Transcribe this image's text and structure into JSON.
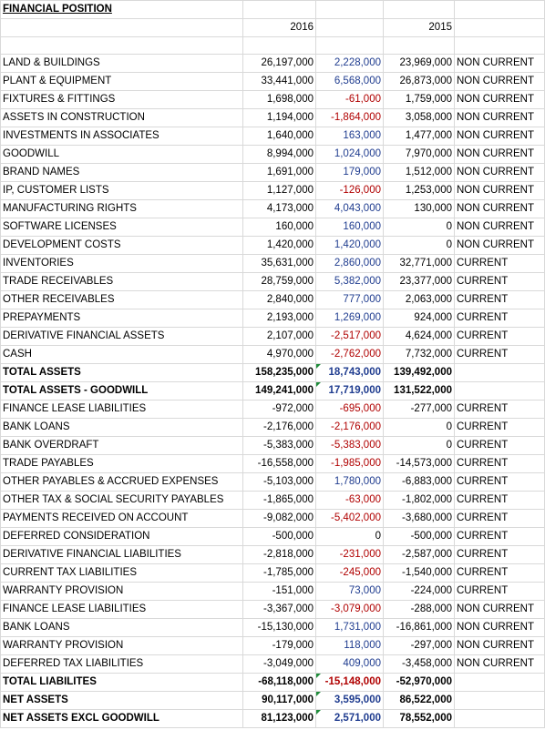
{
  "sheet": {
    "title": "FINANCIAL POSITION",
    "header_2016": "2016",
    "header_2015": "2015",
    "colors": {
      "positive_variance": "#1f3c8f",
      "negative_variance": "#b00000",
      "error_flag": "#1e8c3a"
    },
    "rows": [
      {
        "label": "LAND & BUILDINGS",
        "y2016": "26,197,000",
        "var": "2,228,000",
        "y2015": "23,969,000",
        "cls": "NON CURRENT",
        "sign": "pos"
      },
      {
        "label": "PLANT & EQUIPMENT",
        "y2016": "33,441,000",
        "var": "6,568,000",
        "y2015": "26,873,000",
        "cls": "NON CURRENT",
        "sign": "pos"
      },
      {
        "label": "FIXTURES & FITTINGS",
        "y2016": "1,698,000",
        "var": "-61,000",
        "y2015": "1,759,000",
        "cls": "NON CURRENT",
        "sign": "neg"
      },
      {
        "label": "ASSETS IN CONSTRUCTION",
        "y2016": "1,194,000",
        "var": "-1,864,000",
        "y2015": "3,058,000",
        "cls": "NON CURRENT",
        "sign": "neg"
      },
      {
        "label": "INVESTMENTS IN ASSOCIATES",
        "y2016": "1,640,000",
        "var": "163,000",
        "y2015": "1,477,000",
        "cls": "NON CURRENT",
        "sign": "pos"
      },
      {
        "label": "GOODWILL",
        "y2016": "8,994,000",
        "var": "1,024,000",
        "y2015": "7,970,000",
        "cls": "NON CURRENT",
        "sign": "pos"
      },
      {
        "label": "BRAND NAMES",
        "y2016": "1,691,000",
        "var": "179,000",
        "y2015": "1,512,000",
        "cls": "NON CURRENT",
        "sign": "pos"
      },
      {
        "label": "IP, CUSTOMER LISTS",
        "y2016": "1,127,000",
        "var": "-126,000",
        "y2015": "1,253,000",
        "cls": "NON CURRENT",
        "sign": "neg"
      },
      {
        "label": "MANUFACTURING RIGHTS",
        "y2016": "4,173,000",
        "var": "4,043,000",
        "y2015": "130,000",
        "cls": "NON CURRENT",
        "sign": "pos"
      },
      {
        "label": "SOFTWARE LICENSES",
        "y2016": "160,000",
        "var": "160,000",
        "y2015": "0",
        "cls": "NON CURRENT",
        "sign": "pos"
      },
      {
        "label": "DEVELOPMENT COSTS",
        "y2016": "1,420,000",
        "var": "1,420,000",
        "y2015": "0",
        "cls": "NON CURRENT",
        "sign": "pos"
      },
      {
        "label": "INVENTORIES",
        "y2016": "35,631,000",
        "var": "2,860,000",
        "y2015": "32,771,000",
        "cls": "CURRENT",
        "sign": "pos"
      },
      {
        "label": "TRADE RECEIVABLES",
        "y2016": "28,759,000",
        "var": "5,382,000",
        "y2015": "23,377,000",
        "cls": "CURRENT",
        "sign": "pos"
      },
      {
        "label": "OTHER RECEIVABLES",
        "y2016": "2,840,000",
        "var": "777,000",
        "y2015": "2,063,000",
        "cls": "CURRENT",
        "sign": "pos"
      },
      {
        "label": "PREPAYMENTS",
        "y2016": "2,193,000",
        "var": "1,269,000",
        "y2015": "924,000",
        "cls": "CURRENT",
        "sign": "pos"
      },
      {
        "label": "DERIVATIVE FINANCIAL ASSETS",
        "y2016": "2,107,000",
        "var": "-2,517,000",
        "y2015": "4,624,000",
        "cls": "CURRENT",
        "sign": "neg"
      },
      {
        "label": "CASH",
        "y2016": "4,970,000",
        "var": "-2,762,000",
        "y2015": "7,732,000",
        "cls": "CURRENT",
        "sign": "neg"
      },
      {
        "label": "TOTAL ASSETS",
        "y2016": "158,235,000",
        "var": "18,743,000",
        "y2015": "139,492,000",
        "cls": "",
        "sign": "pos",
        "bold": true,
        "flag": true
      },
      {
        "label": "TOTAL ASSETS - GOODWILL",
        "y2016": "149,241,000",
        "var": "17,719,000",
        "y2015": "131,522,000",
        "cls": "",
        "sign": "pos",
        "bold": true,
        "flag": true
      },
      {
        "label": "FINANCE LEASE LIABILITIES",
        "y2016": "-972,000",
        "var": "-695,000",
        "y2015": "-277,000",
        "cls": "CURRENT",
        "sign": "neg"
      },
      {
        "label": "BANK LOANS",
        "y2016": "-2,176,000",
        "var": "-2,176,000",
        "y2015": "0",
        "cls": "CURRENT",
        "sign": "neg"
      },
      {
        "label": "BANK OVERDRAFT",
        "y2016": "-5,383,000",
        "var": "-5,383,000",
        "y2015": "0",
        "cls": "CURRENT",
        "sign": "neg"
      },
      {
        "label": "TRADE PAYABLES",
        "y2016": "-16,558,000",
        "var": "-1,985,000",
        "y2015": "-14,573,000",
        "cls": "CURRENT",
        "sign": "neg"
      },
      {
        "label": "OTHER PAYABLES & ACCRUED EXPENSES",
        "y2016": "-5,103,000",
        "var": "1,780,000",
        "y2015": "-6,883,000",
        "cls": "CURRENT",
        "sign": "pos"
      },
      {
        "label": "OTHER TAX & SOCIAL SECURITY PAYABLES",
        "y2016": "-1,865,000",
        "var": "-63,000",
        "y2015": "-1,802,000",
        "cls": "CURRENT",
        "sign": "neg"
      },
      {
        "label": "PAYMENTS RECEIVED ON ACCOUNT",
        "y2016": "-9,082,000",
        "var": "-5,402,000",
        "y2015": "-3,680,000",
        "cls": "CURRENT",
        "sign": "neg"
      },
      {
        "label": "DEFERRED CONSIDERATION",
        "y2016": "-500,000",
        "var": "0",
        "y2015": "-500,000",
        "cls": "CURRENT",
        "sign": "zero"
      },
      {
        "label": "DERIVATIVE FINANCIAL LIABILITIES",
        "y2016": "-2,818,000",
        "var": "-231,000",
        "y2015": "-2,587,000",
        "cls": "CURRENT",
        "sign": "neg"
      },
      {
        "label": "CURRENT TAX LIABILITIES",
        "y2016": "-1,785,000",
        "var": "-245,000",
        "y2015": "-1,540,000",
        "cls": "CURRENT",
        "sign": "neg"
      },
      {
        "label": "WARRANTY PROVISION",
        "y2016": "-151,000",
        "var": "73,000",
        "y2015": "-224,000",
        "cls": "CURRENT",
        "sign": "pos"
      },
      {
        "label": "FINANCE LEASE LIABILITIES",
        "y2016": "-3,367,000",
        "var": "-3,079,000",
        "y2015": "-288,000",
        "cls": "NON CURRENT",
        "sign": "neg"
      },
      {
        "label": "BANK LOANS",
        "y2016": "-15,130,000",
        "var": "1,731,000",
        "y2015": "-16,861,000",
        "cls": "NON CURRENT",
        "sign": "pos"
      },
      {
        "label": "WARRANTY PROVISION",
        "y2016": "-179,000",
        "var": "118,000",
        "y2015": "-297,000",
        "cls": "NON CURRENT",
        "sign": "pos"
      },
      {
        "label": "DEFERRED TAX LIABILITIES",
        "y2016": "-3,049,000",
        "var": "409,000",
        "y2015": "-3,458,000",
        "cls": "NON CURRENT",
        "sign": "pos"
      },
      {
        "label": "TOTAL LIABILITES",
        "y2016": "-68,118,000",
        "var": "-15,148,000",
        "y2015": "-52,970,000",
        "cls": "",
        "sign": "neg",
        "bold": true,
        "flag": true
      },
      {
        "label": "NET ASSETS",
        "y2016": "90,117,000",
        "var": "3,595,000",
        "y2015": "86,522,000",
        "cls": "",
        "sign": "pos",
        "bold": true,
        "flag": true
      },
      {
        "label": "NET ASSETS EXCL GOODWILL",
        "y2016": "81,123,000",
        "var": "2,571,000",
        "y2015": "78,552,000",
        "cls": "",
        "sign": "pos",
        "bold": true,
        "flag": true
      }
    ]
  }
}
